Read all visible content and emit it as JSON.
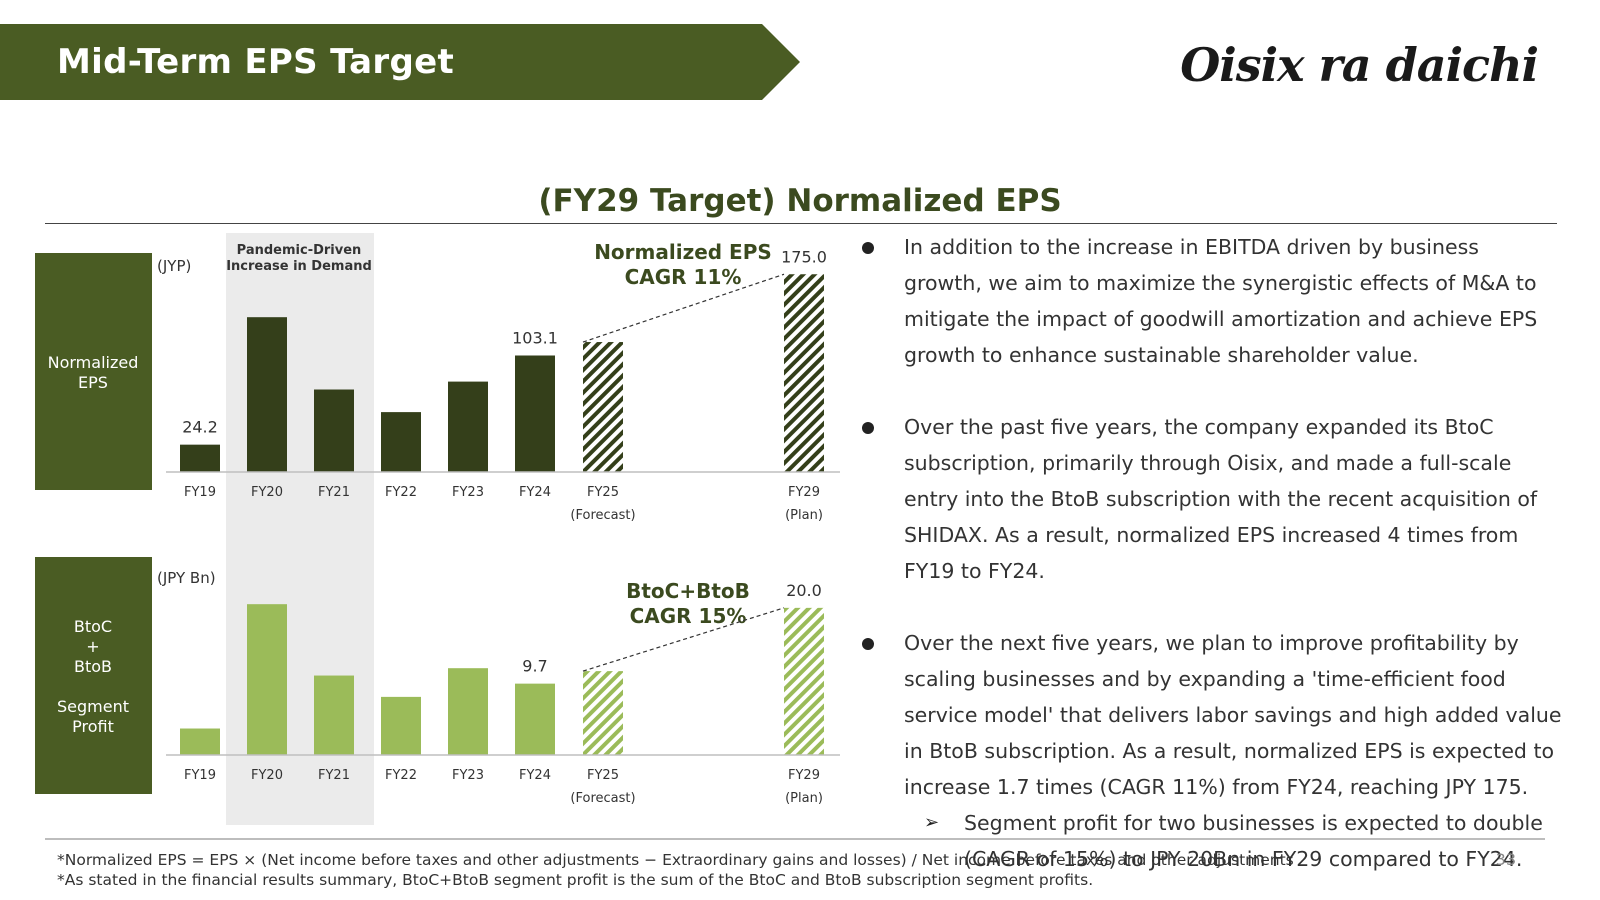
{
  "header": {
    "title": "Mid-Term EPS Target",
    "logo": "Oisix ra daichi"
  },
  "section_title": "(FY29 Target) Normalized EPS",
  "colors": {
    "header_green": "#4a5c23",
    "dark_bar": "#343f1a",
    "light_bar": "#9bbb59",
    "shade": "#ebebeb"
  },
  "chart_data": [
    {
      "type": "bar",
      "panel_label": "Normalized EPS",
      "unit": "(JYP)",
      "categories": [
        "FY19",
        "FY20",
        "FY21",
        "FY22",
        "FY23",
        "FY24",
        "FY25",
        "FY29"
      ],
      "category_notes": {
        "FY25": "(Forecast)",
        "FY29": "(Plan)"
      },
      "values": [
        24.2,
        137,
        73,
        53,
        80,
        103.1,
        115,
        175.0
      ],
      "hatched": [
        "FY25",
        "FY29"
      ],
      "data_labels": {
        "FY19": "24.2",
        "FY24": "103.1",
        "FY29": "175.0"
      },
      "ylim": [
        0,
        200
      ],
      "annotation": {
        "line1": "Normalized EPS",
        "line2": "CAGR 11%"
      },
      "highlight": {
        "from": "FY20",
        "to": "FY21",
        "line1": "Pandemic-Driven",
        "line2": "Increase in Demand"
      }
    },
    {
      "type": "bar",
      "panel_label_line1": "BtoC",
      "panel_label_plus": "+",
      "panel_label_line2": "BtoB",
      "panel_label_line3": "Segment",
      "panel_label_line4": "Profit",
      "unit": "(JPY Bn)",
      "categories": [
        "FY19",
        "FY20",
        "FY21",
        "FY22",
        "FY23",
        "FY24",
        "FY25",
        "FY29"
      ],
      "category_notes": {
        "FY25": "(Forecast)",
        "FY29": "(Plan)"
      },
      "values": [
        3.6,
        20.5,
        10.8,
        7.9,
        11.8,
        9.7,
        11.4,
        20.0
      ],
      "hatched": [
        "FY25",
        "FY29"
      ],
      "data_labels": {
        "FY24": "9.7",
        "FY29": "20.0"
      },
      "ylim": [
        0,
        28
      ],
      "annotation": {
        "line1": "BtoC+BtoB",
        "line2": "CAGR 15%"
      }
    }
  ],
  "bullets": [
    "In addition to the increase in EBITDA driven by business growth, we aim to maximize the synergistic effects of M&A to mitigate the impact of goodwill amortization and achieve EPS growth to enhance sustainable shareholder value.",
    "Over the past five years, the company expanded its BtoC subscription, primarily through Oisix, and made a full-scale entry into the BtoB subscription with the recent acquisition of SHIDAX. As a result, normalized EPS increased 4 times from FY19 to FY24.",
    "Over the next five years, we plan to improve profitability by scaling businesses and by expanding a 'time-efficient food service model' that delivers labor savings and high added value in BtoB subscription. As a result, normalized EPS is expected to increase 1.7 times (CAGR 11%) from FY24, reaching JPY 175."
  ],
  "sub_bullet": "Segment profit for two businesses is expected to double (CAGR of 15%) to JPY 20Bn in FY29 compared to FY24.",
  "footnotes": [
    "*Normalized EPS = EPS × (Net income before taxes and other adjustments − Extraordinary gains and losses) / Net income before taxes and other adjustments",
    "*As stated in the financial results summary, BtoC+BtoB segment profit is the sum of the BtoC and BtoB subscription segment profits."
  ],
  "page_number": "33"
}
